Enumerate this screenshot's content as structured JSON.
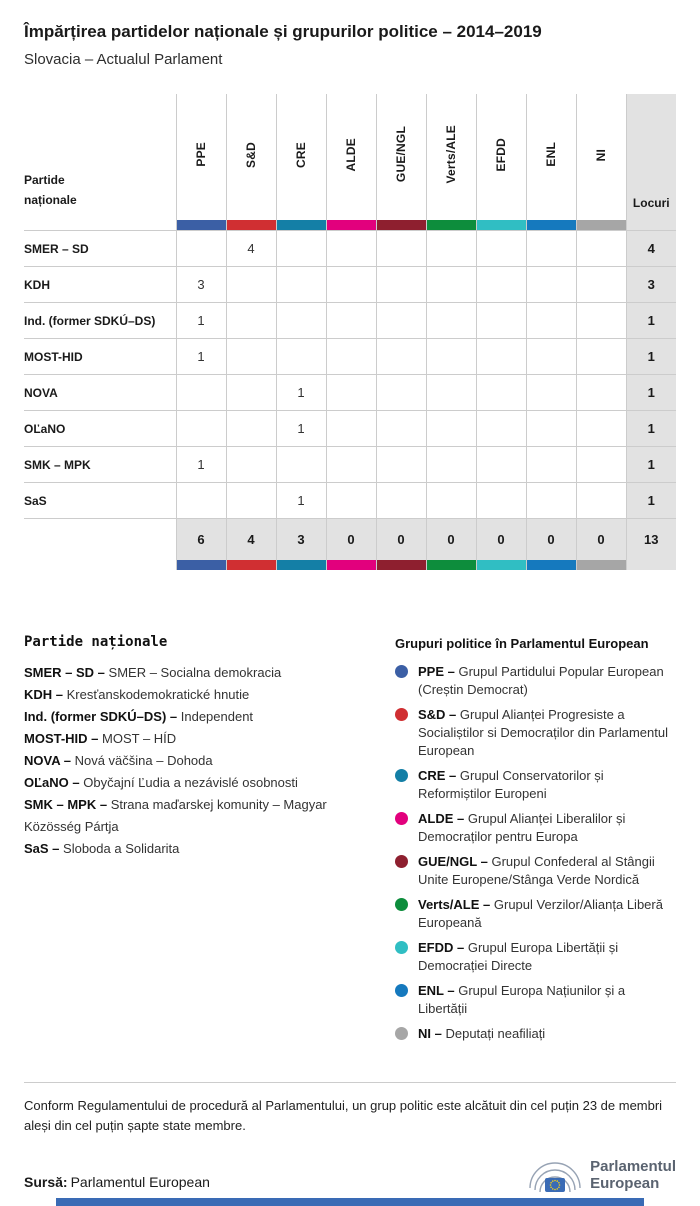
{
  "header": {
    "title": "Împărțirea partidelor naționale și grupurilor politice – 2014–2019",
    "subtitle": "Slovacia – Actualul Parlament"
  },
  "chart_data": {
    "type": "table",
    "title": "Împărțirea partidelor naționale și grupurilor politice – 2014–2019",
    "subtitle": "Slovacia – Actualul Parlament",
    "row_header_lines": [
      "Partide",
      "naționale"
    ],
    "seats_label": "Locuri",
    "group_columns": [
      {
        "label": "PPE",
        "color": "#3b5fa5"
      },
      {
        "label": "S&D",
        "color": "#d02f32"
      },
      {
        "label": "CRE",
        "color": "#147fa6"
      },
      {
        "label": "ALDE",
        "color": "#e2007d"
      },
      {
        "label": "GUE/NGL",
        "color": "#8e1f2f"
      },
      {
        "label": "Verts/ALE",
        "color": "#0d8d3c"
      },
      {
        "label": "EFDD",
        "color": "#30bec3"
      },
      {
        "label": "ENL",
        "color": "#1579be"
      },
      {
        "label": "NI",
        "color": "#a6a6a6"
      }
    ],
    "rows": [
      {
        "party": "SMER – SD",
        "values": [
          null,
          4,
          null,
          null,
          null,
          null,
          null,
          null,
          null
        ],
        "seats": 4
      },
      {
        "party": "KDH",
        "values": [
          3,
          null,
          null,
          null,
          null,
          null,
          null,
          null,
          null
        ],
        "seats": 3
      },
      {
        "party": "Ind. (former SDKÚ–DS)",
        "values": [
          1,
          null,
          null,
          null,
          null,
          null,
          null,
          null,
          null
        ],
        "seats": 1
      },
      {
        "party": "MOST-HID",
        "values": [
          1,
          null,
          null,
          null,
          null,
          null,
          null,
          null,
          null
        ],
        "seats": 1
      },
      {
        "party": "NOVA",
        "values": [
          null,
          null,
          1,
          null,
          null,
          null,
          null,
          null,
          null
        ],
        "seats": 1
      },
      {
        "party": "OĽaNO",
        "values": [
          null,
          null,
          1,
          null,
          null,
          null,
          null,
          null,
          null
        ],
        "seats": 1
      },
      {
        "party": "SMK – MPK",
        "values": [
          1,
          null,
          null,
          null,
          null,
          null,
          null,
          null,
          null
        ],
        "seats": 1
      },
      {
        "party": "SaS",
        "values": [
          null,
          null,
          1,
          null,
          null,
          null,
          null,
          null,
          null
        ],
        "seats": 1
      }
    ],
    "totals": {
      "values": [
        6,
        4,
        3,
        0,
        0,
        0,
        0,
        0,
        0
      ],
      "seats": 13
    }
  },
  "party_legend": {
    "heading": "Partide naționale",
    "items": [
      {
        "name": "SMER – SD",
        "desc": "SMER – Socialna demokracia"
      },
      {
        "name": "KDH",
        "desc": "Kresťanskodemokratické hnutie"
      },
      {
        "name": "Ind. (former SDKÚ–DS)",
        "desc": "Independent"
      },
      {
        "name": "MOST-HID",
        "desc": "MOST – HÍD"
      },
      {
        "name": "NOVA",
        "desc": "Nová väčšina – Dohoda"
      },
      {
        "name": "OĽaNO",
        "desc": "Obyčajní Ľudia a nezávislé osobnosti"
      },
      {
        "name": "SMK – MPK",
        "desc": "Strana maďarskej komunity – Magyar Közösség Pártja"
      },
      {
        "name": "SaS",
        "desc": "Sloboda a Solidarita"
      }
    ]
  },
  "group_legend": {
    "heading": "Grupuri politice în Parlamentul European",
    "items": [
      {
        "abbr": "PPE",
        "color": "#3b5fa5",
        "desc": "Grupul Partidului Popular European (Creștin Democrat)"
      },
      {
        "abbr": "S&D",
        "color": "#d02f32",
        "desc": "Grupul Alianței Progresiste a Socialiștilor si Democraților din Parlamentul European"
      },
      {
        "abbr": "CRE",
        "color": "#147fa6",
        "desc": "Grupul Conservatorilor și Reformiștilor Europeni"
      },
      {
        "abbr": "ALDE",
        "color": "#e2007d",
        "desc": "Grupul Alianței Liberalilor și Democraților pentru Europa"
      },
      {
        "abbr": "GUE/NGL",
        "color": "#8e1f2f",
        "desc": "Grupul Confederal al Stângii Unite Europene/Stânga Verde Nordică"
      },
      {
        "abbr": "Verts/ALE",
        "color": "#0d8d3c",
        "desc": "Grupul Verzilor/Alianța Liberă Europeană"
      },
      {
        "abbr": "EFDD",
        "color": "#30bec3",
        "desc": "Grupul Europa Libertății și Democrației Directe"
      },
      {
        "abbr": "ENL",
        "color": "#1579be",
        "desc": "Grupul Europa Națiunilor și a Libertății"
      },
      {
        "abbr": "NI",
        "color": "#a6a6a6",
        "desc": "Deputați neafiliați"
      }
    ]
  },
  "footer": {
    "note": "Conform Regulamentului de procedură al Parlamentului, un grup politic este alcătuit din cel puțin 23 de membri aleși din cel puțin șapte state membre.",
    "source_label": "Sursă:",
    "source_value": "Parlamentul European",
    "logo_line1": "Parlamentul",
    "logo_line2": "European"
  },
  "colors": {
    "seats_column_bg": "#e2e2e2",
    "grid_line": "#cccccc",
    "bottom_strip": "#3a6bb5",
    "eu_flag_blue": "#3a6bb5",
    "eu_star_yellow": "#f7d117"
  }
}
